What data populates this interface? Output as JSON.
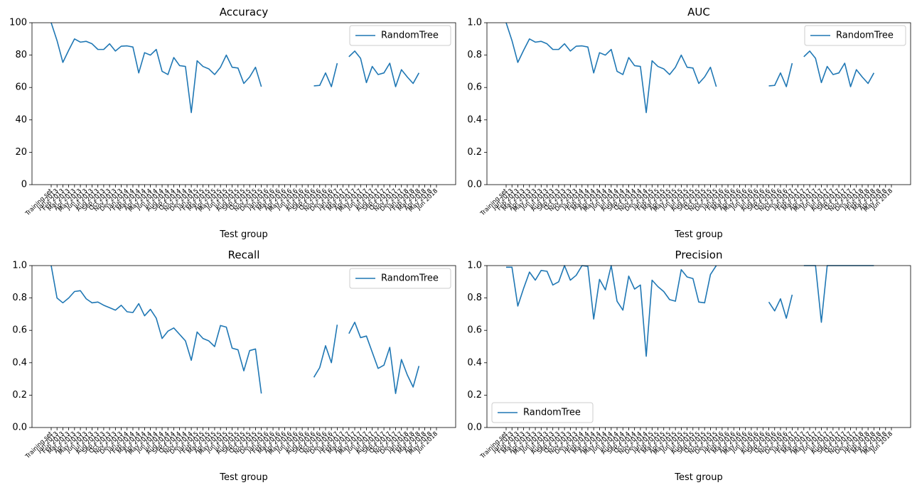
{
  "chart_data": [
    {
      "type": "line",
      "title": "Accuracy",
      "x_label": "Test group",
      "legend": "upper right",
      "grid": false,
      "categories": [
        "Training set",
        "Jan 2013",
        "Feb 2013",
        "Mar 2013",
        "Apr 2013",
        "May 2013",
        "Jun 2013",
        "Jul 2013",
        "Aug 2013",
        "Sep 2013",
        "Oct 2013",
        "Nov 2013",
        "Dec 2013",
        "Jan 2014",
        "Feb 2014",
        "Mar 2014",
        "Apr 2014",
        "May 2014",
        "Jun 2014",
        "Jul 2014",
        "Aug 2014",
        "Sep 2014",
        "Oct 2014",
        "Nov 2014",
        "Dec 2014",
        "Jan 2015",
        "Feb 2015",
        "Mar 2015",
        "Apr 2015",
        "May 2015",
        "Jun 2015",
        "Jul 2015",
        "Aug 2015",
        "Sep 2015",
        "Oct 2015",
        "Nov 2015",
        "Dec 2015",
        "Jan 2016",
        "Feb 2016",
        "Mar 2016",
        "Apr 2016",
        "May 2016",
        "Jun 2016",
        "Jul 2016",
        "Aug 2016",
        "Sep 2016",
        "Oct 2016",
        "Nov 2016",
        "Dec 2016",
        "Jan 2017",
        "Feb 2017",
        "Mar 2017",
        "Apr 2017",
        "May 2017",
        "Jun 2017",
        "Jul 2017",
        "Aug 2017",
        "Sep 2017",
        "Oct 2017",
        "Nov 2017",
        "Dec 2017",
        "Jan 2018",
        "Feb 2018",
        "Mar 2018",
        "Apr 2018",
        "May 2018",
        "Jun 2018"
      ],
      "series": [
        {
          "name": "RandomTree",
          "color": "#1f77b4",
          "values": [
            100,
            89,
            75.5,
            83,
            90,
            88,
            88.5,
            87,
            83.5,
            83.5,
            87,
            82.5,
            85.5,
            85.7,
            85,
            69,
            81.5,
            80,
            83.5,
            70,
            68,
            78.5,
            73.5,
            73,
            44.5,
            76.5,
            73,
            71.5,
            68,
            72.5,
            80,
            72.5,
            72,
            62.5,
            66.5,
            72.5,
            60.5,
            null,
            null,
            null,
            null,
            null,
            null,
            null,
            null,
            61,
            61.3,
            69,
            60.5,
            75,
            null,
            79,
            82.5,
            78,
            63,
            73,
            68,
            69,
            75,
            60.5,
            71,
            66.5,
            62.5,
            69,
            null,
            null,
            null
          ]
        }
      ],
      "ylim": [
        0,
        100
      ],
      "yticks": [
        0,
        20,
        40,
        60,
        80,
        100
      ]
    },
    {
      "type": "line",
      "title": "AUC",
      "x_label": "Test group",
      "legend": "upper right",
      "grid": false,
      "categories": [
        "Training set",
        "Jan 2013",
        "Feb 2013",
        "Mar 2013",
        "Apr 2013",
        "May 2013",
        "Jun 2013",
        "Jul 2013",
        "Aug 2013",
        "Sep 2013",
        "Oct 2013",
        "Nov 2013",
        "Dec 2013",
        "Jan 2014",
        "Feb 2014",
        "Mar 2014",
        "Apr 2014",
        "May 2014",
        "Jun 2014",
        "Jul 2014",
        "Aug 2014",
        "Sep 2014",
        "Oct 2014",
        "Nov 2014",
        "Dec 2014",
        "Jan 2015",
        "Feb 2015",
        "Mar 2015",
        "Apr 2015",
        "May 2015",
        "Jun 2015",
        "Jul 2015",
        "Aug 2015",
        "Sep 2015",
        "Oct 2015",
        "Nov 2015",
        "Dec 2015",
        "Jan 2016",
        "Feb 2016",
        "Mar 2016",
        "Apr 2016",
        "May 2016",
        "Jun 2016",
        "Jul 2016",
        "Aug 2016",
        "Sep 2016",
        "Oct 2016",
        "Nov 2016",
        "Dec 2016",
        "Jan 2017",
        "Feb 2017",
        "Mar 2017",
        "Apr 2017",
        "May 2017",
        "Jun 2017",
        "Jul 2017",
        "Aug 2017",
        "Sep 2017",
        "Oct 2017",
        "Nov 2017",
        "Dec 2017",
        "Jan 2018",
        "Feb 2018",
        "Mar 2018",
        "Apr 2018",
        "May 2018",
        "Jun 2018"
      ],
      "series": [
        {
          "name": "RandomTree",
          "color": "#1f77b4",
          "values": [
            1.0,
            0.89,
            0.755,
            0.83,
            0.9,
            0.88,
            0.885,
            0.87,
            0.835,
            0.835,
            0.87,
            0.825,
            0.855,
            0.857,
            0.85,
            0.69,
            0.815,
            0.8,
            0.835,
            0.7,
            0.68,
            0.785,
            0.735,
            0.73,
            0.445,
            0.765,
            0.73,
            0.715,
            0.68,
            0.725,
            0.8,
            0.725,
            0.72,
            0.625,
            0.665,
            0.725,
            0.605,
            null,
            null,
            null,
            null,
            null,
            null,
            null,
            null,
            0.61,
            0.613,
            0.69,
            0.605,
            0.75,
            null,
            0.79,
            0.825,
            0.78,
            0.63,
            0.73,
            0.68,
            0.69,
            0.75,
            0.605,
            0.71,
            0.665,
            0.625,
            0.69,
            null,
            null,
            null
          ]
        }
      ],
      "ylim": [
        0,
        1
      ],
      "yticks": [
        {
          "value": 0,
          "label": "0.0"
        },
        0.2,
        0.4,
        0.6,
        0.8,
        {
          "value": 1,
          "label": "1.0"
        }
      ]
    },
    {
      "type": "line",
      "title": "Recall",
      "x_label": "Test group",
      "legend": "upper right",
      "grid": false,
      "categories": [
        "Training set",
        "Jan 2013",
        "Feb 2013",
        "Mar 2013",
        "Apr 2013",
        "May 2013",
        "Jun 2013",
        "Jul 2013",
        "Aug 2013",
        "Sep 2013",
        "Oct 2013",
        "Nov 2013",
        "Dec 2013",
        "Jan 2014",
        "Feb 2014",
        "Mar 2014",
        "Apr 2014",
        "May 2014",
        "Jun 2014",
        "Jul 2014",
        "Aug 2014",
        "Sep 2014",
        "Oct 2014",
        "Nov 2014",
        "Dec 2014",
        "Jan 2015",
        "Feb 2015",
        "Mar 2015",
        "Apr 2015",
        "May 2015",
        "Jun 2015",
        "Jul 2015",
        "Aug 2015",
        "Sep 2015",
        "Oct 2015",
        "Nov 2015",
        "Dec 2015",
        "Jan 2016",
        "Feb 2016",
        "Mar 2016",
        "Apr 2016",
        "May 2016",
        "Jun 2016",
        "Jul 2016",
        "Aug 2016",
        "Sep 2016",
        "Oct 2016",
        "Nov 2016",
        "Dec 2016",
        "Jan 2017",
        "Feb 2017",
        "Mar 2017",
        "Apr 2017",
        "May 2017",
        "Jun 2017",
        "Jul 2017",
        "Aug 2017",
        "Sep 2017",
        "Oct 2017",
        "Nov 2017",
        "Dec 2017",
        "Jan 2018",
        "Feb 2018",
        "Mar 2018",
        "Apr 2018",
        "May 2018",
        "Jun 2018"
      ],
      "series": [
        {
          "name": "RandomTree",
          "color": "#1f77b4",
          "values": [
            1.0,
            0.8,
            0.77,
            0.8,
            0.84,
            0.845,
            0.795,
            0.77,
            0.775,
            0.755,
            0.74,
            0.725,
            0.755,
            0.715,
            0.71,
            0.765,
            0.69,
            0.73,
            0.675,
            0.55,
            0.595,
            0.615,
            0.575,
            0.535,
            0.415,
            0.59,
            0.55,
            0.535,
            0.5,
            0.63,
            0.62,
            0.49,
            0.48,
            0.35,
            0.475,
            0.485,
            0.21,
            null,
            null,
            null,
            null,
            null,
            null,
            null,
            null,
            0.31,
            0.37,
            0.505,
            0.4,
            0.635,
            null,
            0.58,
            0.65,
            0.555,
            0.565,
            0.465,
            0.365,
            0.385,
            0.495,
            0.21,
            0.42,
            0.325,
            0.25,
            0.38,
            null,
            null,
            null
          ]
        }
      ],
      "ylim": [
        0,
        1
      ],
      "yticks": [
        {
          "value": 0,
          "label": "0.0"
        },
        0.2,
        0.4,
        0.6,
        0.8,
        {
          "value": 1,
          "label": "1.0"
        }
      ]
    },
    {
      "type": "line",
      "title": "Precision",
      "x_label": "Test group",
      "legend": "lower left",
      "grid": false,
      "categories": [
        "Training set",
        "Jan 2013",
        "Feb 2013",
        "Mar 2013",
        "Apr 2013",
        "May 2013",
        "Jun 2013",
        "Jul 2013",
        "Aug 2013",
        "Sep 2013",
        "Oct 2013",
        "Nov 2013",
        "Dec 2013",
        "Jan 2014",
        "Feb 2014",
        "Mar 2014",
        "Apr 2014",
        "May 2014",
        "Jun 2014",
        "Jul 2014",
        "Aug 2014",
        "Sep 2014",
        "Oct 2014",
        "Nov 2014",
        "Dec 2014",
        "Jan 2015",
        "Feb 2015",
        "Mar 2015",
        "Apr 2015",
        "May 2015",
        "Jun 2015",
        "Jul 2015",
        "Aug 2015",
        "Sep 2015",
        "Oct 2015",
        "Nov 2015",
        "Dec 2015",
        "Jan 2016",
        "Feb 2016",
        "Mar 2016",
        "Apr 2016",
        "May 2016",
        "Jun 2016",
        "Jul 2016",
        "Aug 2016",
        "Sep 2016",
        "Oct 2016",
        "Nov 2016",
        "Dec 2016",
        "Jan 2017",
        "Feb 2017",
        "Mar 2017",
        "Apr 2017",
        "May 2017",
        "Jun 2017",
        "Jul 2017",
        "Aug 2017",
        "Sep 2017",
        "Oct 2017",
        "Nov 2017",
        "Dec 2017",
        "Jan 2018",
        "Feb 2018",
        "Mar 2018",
        "Apr 2018",
        "May 2018",
        "Jun 2018"
      ],
      "series": [
        {
          "name": "RandomTree",
          "color": "#1f77b4",
          "values": [
            0.99,
            0.99,
            0.75,
            0.86,
            0.96,
            0.91,
            0.97,
            0.965,
            0.88,
            0.9,
            1.0,
            0.91,
            0.94,
            1.0,
            0.995,
            0.67,
            0.915,
            0.85,
            1.0,
            0.78,
            0.725,
            0.935,
            0.855,
            0.88,
            0.44,
            0.91,
            0.87,
            0.84,
            0.79,
            0.78,
            0.975,
            0.93,
            0.92,
            0.775,
            0.77,
            0.945,
            1.0,
            null,
            null,
            null,
            null,
            null,
            null,
            null,
            null,
            0.775,
            0.72,
            0.795,
            0.675,
            0.82,
            null,
            1.0,
            1.0,
            1.0,
            0.65,
            1.0,
            1.0,
            1.0,
            1.0,
            1.0,
            1.0,
            1.0,
            1.0,
            1.0,
            null,
            null,
            null
          ]
        }
      ],
      "ylim": [
        0,
        1
      ],
      "yticks": [
        {
          "value": 0,
          "label": "0.0"
        },
        0.2,
        0.4,
        0.6,
        0.8,
        {
          "value": 1,
          "label": "1.0"
        }
      ]
    }
  ]
}
